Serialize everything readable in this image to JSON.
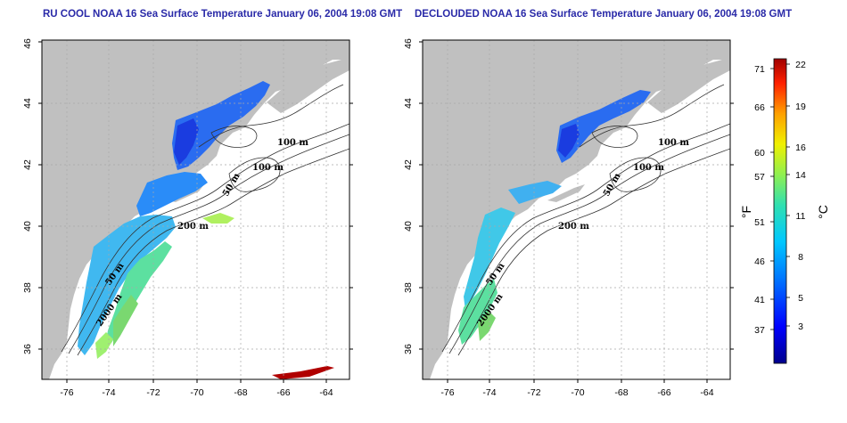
{
  "panels": [
    {
      "title": "RU COOL NOAA 16 Sea Surface Temperature January 06, 2004 19:08 GMT",
      "contour_labels": [
        "100 m",
        "100 m",
        "50 m",
        "200 m",
        "50 m",
        "2000 m"
      ]
    },
    {
      "title": "DECLOUDED NOAA 16 Sea Surface Temperature January 06, 2004 19:08 GMT",
      "contour_labels": [
        "100 m",
        "100 m",
        "50 m",
        "200 m",
        "50 m",
        "2000 m"
      ]
    }
  ],
  "axes": {
    "lat_ticks": [
      "36",
      "38",
      "40",
      "42",
      "44",
      "46"
    ],
    "lon_ticks": [
      "-76",
      "-74",
      "-72",
      "-70",
      "-68",
      "-66",
      "-64"
    ]
  },
  "colorbar": {
    "f_label": "°F",
    "c_label": "°C",
    "f_ticks": [
      "71",
      "66",
      "60",
      "57",
      "51",
      "46",
      "41",
      "37"
    ],
    "c_ticks": [
      "22",
      "19",
      "16",
      "14",
      "11",
      "8",
      "5",
      "3"
    ]
  },
  "colors": {
    "land": "#c0c0c0",
    "grid": "#a8a8a8",
    "title": "#2a2aa8"
  }
}
